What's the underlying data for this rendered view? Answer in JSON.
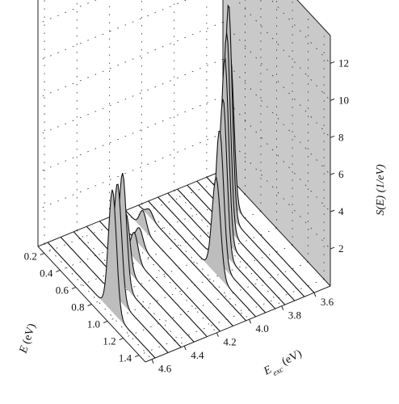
{
  "chart_data": {
    "type": "3d-waterfall",
    "title": "",
    "axes": {
      "e": {
        "label": "E (eV)",
        "label_main": "E",
        "label_unit": " (eV)",
        "ticks": [
          0.2,
          0.4,
          0.6,
          0.8,
          1.0,
          1.2,
          1.4
        ],
        "tick_labels": [
          "0.2",
          "0.4",
          "0.6",
          "0.8",
          "1.0",
          "1.2",
          "1.4"
        ],
        "range": [
          0.12,
          1.48
        ]
      },
      "eexc": {
        "label": "E_exc (eV)",
        "label_main": "E",
        "label_sub": "exc",
        "label_unit": " (eV)",
        "ticks": [
          3.6,
          3.8,
          4.0,
          4.2,
          4.4,
          4.6
        ],
        "tick_labels": [
          "3.6",
          "3.8",
          "4.0",
          "4.2",
          "4.4",
          "4.6"
        ],
        "range": [
          3.5,
          4.64
        ]
      },
      "s": {
        "label": "S(E) (1/eV)",
        "ticks": [
          2,
          4,
          6,
          8,
          10,
          12
        ],
        "tick_labels": [
          "2",
          "4",
          "6",
          "8",
          "10",
          "12"
        ],
        "range": [
          0,
          13.5
        ]
      }
    },
    "grid": true,
    "series": [
      {
        "eexc": 4.58,
        "peaks": [
          {
            "center": 0.94,
            "width": 0.05,
            "height": 6.6
          }
        ]
      },
      {
        "eexc": 4.5,
        "peaks": [
          {
            "center": 0.84,
            "width": 0.05,
            "height": 6.2
          }
        ]
      },
      {
        "eexc": 4.42,
        "peaks": [
          {
            "center": 0.74,
            "width": 0.048,
            "height": 6.0
          }
        ]
      },
      {
        "eexc": 4.34,
        "peaks": [
          {
            "center": 0.62,
            "width": 0.047,
            "height": 3.0
          }
        ]
      },
      {
        "eexc": 4.26,
        "peaks": [
          {
            "center": 0.56,
            "width": 0.045,
            "height": 1.4
          }
        ]
      },
      {
        "eexc": 4.18,
        "peaks": [
          {
            "center": 0.46,
            "width": 0.044,
            "height": 0.9
          }
        ]
      },
      {
        "eexc": 4.1,
        "peaks": [
          {
            "center": 0.34,
            "width": 0.042,
            "height": 1.0
          }
        ]
      },
      {
        "eexc": 4.02,
        "peaks": [
          {
            "center": 0.26,
            "width": 0.04,
            "height": 0.4
          }
        ]
      },
      {
        "eexc": 3.96,
        "peaks": [
          {
            "center": 0.98,
            "width": 0.052,
            "height": 5.2
          }
        ]
      },
      {
        "eexc": 3.9,
        "peaks": [
          {
            "center": 0.9,
            "width": 0.05,
            "height": 7.2
          }
        ]
      },
      {
        "eexc": 3.84,
        "peaks": [
          {
            "center": 0.82,
            "width": 0.048,
            "height": 8.3
          }
        ]
      },
      {
        "eexc": 3.78,
        "peaks": [
          {
            "center": 0.72,
            "width": 0.047,
            "height": 9.8
          }
        ]
      },
      {
        "eexc": 3.72,
        "peaks": [
          {
            "center": 0.62,
            "width": 0.046,
            "height": 10.5
          }
        ]
      },
      {
        "eexc": 3.66,
        "peaks": [
          {
            "center": 0.52,
            "width": 0.045,
            "height": 11.4
          }
        ]
      },
      {
        "eexc": 3.6,
        "peaks": [
          {
            "center": 0.42,
            "width": 0.044,
            "height": 8.0
          }
        ]
      }
    ]
  }
}
